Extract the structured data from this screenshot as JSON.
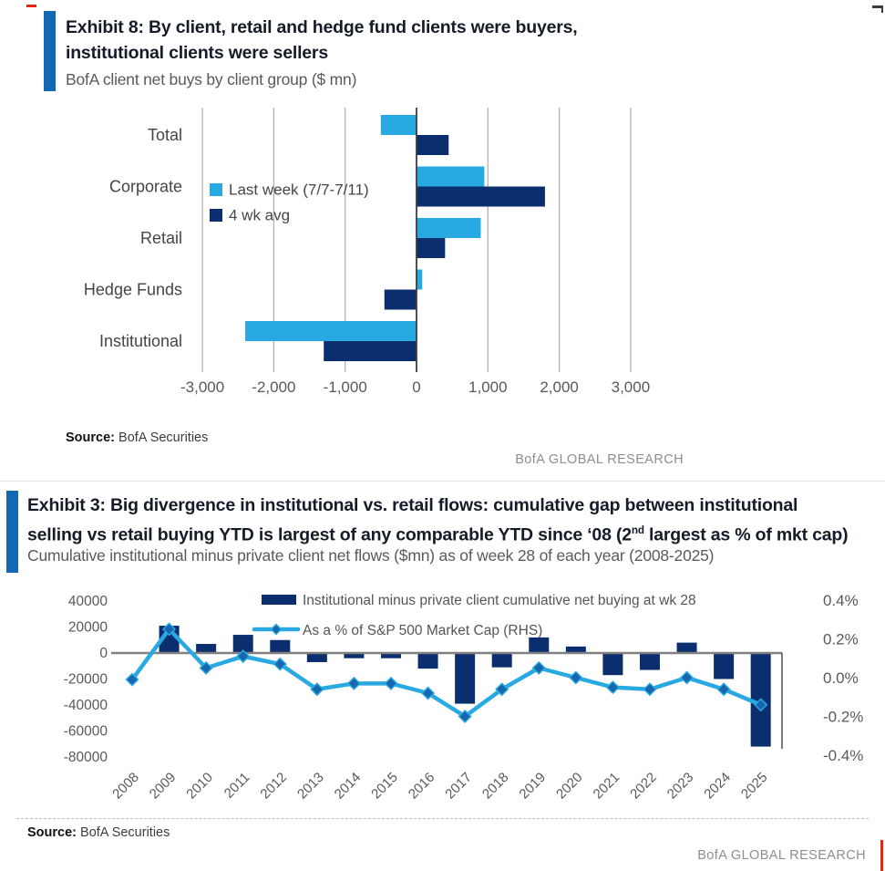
{
  "colors": {
    "accent_bar": "#1268b3",
    "light_blue": "#29a9e1",
    "navy": "#0a2e6e",
    "marker_blue": "#1766ae",
    "grid": "#adadad",
    "zero_line": "#808080",
    "axis_text": "#595959",
    "red_mark": "#e8240f"
  },
  "exhibit8": {
    "title_line1": "Exhibit 8: By client, retail and hedge fund clients were buyers,",
    "title_line2": "institutional clients were sellers",
    "subtitle": "BofA client net buys by client group ($ mn)",
    "source_label": "Source:",
    "source_value": " BofA Securities",
    "research_label": "BofA GLOBAL RESEARCH"
  },
  "exhibit3": {
    "title_line1": "Exhibit 3: Big divergence in institutional vs. retail flows: cumulative gap between institutional",
    "title_line2_pre": "selling vs retail buying YTD is largest of any comparable YTD since ‘08 (2",
    "title_line2_sup": "nd",
    "title_line2_post": " largest as % of mkt cap)",
    "subtitle": "Cumulative institutional minus private client net flows ($mn) as of week 28 of each year (2008-2025)",
    "source_label": "Source:",
    "source_value": " BofA Securities",
    "research_label": "BofA GLOBAL RESEARCH"
  },
  "chart_data": [
    {
      "type": "bar",
      "orientation": "horizontal",
      "title": "BofA client net buys by client group ($ mn)",
      "categories": [
        "Total",
        "Corporate",
        "Retail",
        "Hedge Funds",
        "Institutional"
      ],
      "series": [
        {
          "name": "Last week (7/7-7/11)",
          "color": "#29a9e1",
          "values": [
            -500,
            950,
            900,
            80,
            -2400
          ]
        },
        {
          "name": "4 wk avg",
          "color": "#0a2e6e",
          "values": [
            450,
            1800,
            400,
            -450,
            -1300
          ]
        }
      ],
      "x_ticks": [
        -3000,
        -2000,
        -1000,
        0,
        1000,
        2000,
        3000
      ],
      "x_tick_labels": [
        "-3,000",
        "-2,000",
        "-1,000",
        "0",
        "1,000",
        "2,000",
        "3,000"
      ],
      "xlim": [
        -3200,
        3600
      ],
      "unit": "$ mn",
      "legend_position": "middle-left",
      "grid": "vertical"
    },
    {
      "type": "bar+line",
      "title": "Cumulative institutional minus private client net flows ($mn) as of week 28 of each year",
      "categories": [
        "2008",
        "2009",
        "2010",
        "2011",
        "2012",
        "2013",
        "2014",
        "2015",
        "2016",
        "2017",
        "2018",
        "2019",
        "2020",
        "2021",
        "2022",
        "2023",
        "2024",
        "2025"
      ],
      "series": [
        {
          "name": "Institutional minus private client cumulative net buying at wk 28",
          "type": "bar",
          "axis": "left",
          "color": "#0a2e6e",
          "values": [
            0,
            21000,
            7000,
            14000,
            10000,
            -7000,
            -4000,
            -4000,
            -12000,
            -39000,
            -11000,
            12000,
            5000,
            -17000,
            -13000,
            8000,
            -20000,
            -72000
          ]
        },
        {
          "name": "As a % of S&P 500 Market Cap (RHS)",
          "type": "line",
          "axis": "right",
          "color": "#29a9e1",
          "values": [
            -0.01,
            0.25,
            0.05,
            0.11,
            0.07,
            -0.06,
            -0.03,
            -0.03,
            -0.08,
            -0.2,
            -0.06,
            0.05,
            0.0,
            -0.05,
            -0.06,
            0.0,
            -0.06,
            -0.14
          ]
        }
      ],
      "left_axis": {
        "ticks": [
          40000,
          20000,
          0,
          -20000,
          -40000,
          -60000,
          -80000
        ],
        "tick_labels": [
          "40000",
          "20000",
          "0",
          "-20000",
          "-40000",
          "-60000",
          "-80000"
        ],
        "range": [
          -80000,
          40000
        ]
      },
      "right_axis": {
        "ticks": [
          0.4,
          0.2,
          0.0,
          -0.2,
          -0.4
        ],
        "tick_labels": [
          "0.4%",
          "0.2%",
          "0.0%",
          "-0.2%",
          "-0.4%"
        ],
        "range": [
          -0.4,
          0.4
        ]
      },
      "grid": "zero-line-only",
      "legend_position": "top-center"
    }
  ]
}
